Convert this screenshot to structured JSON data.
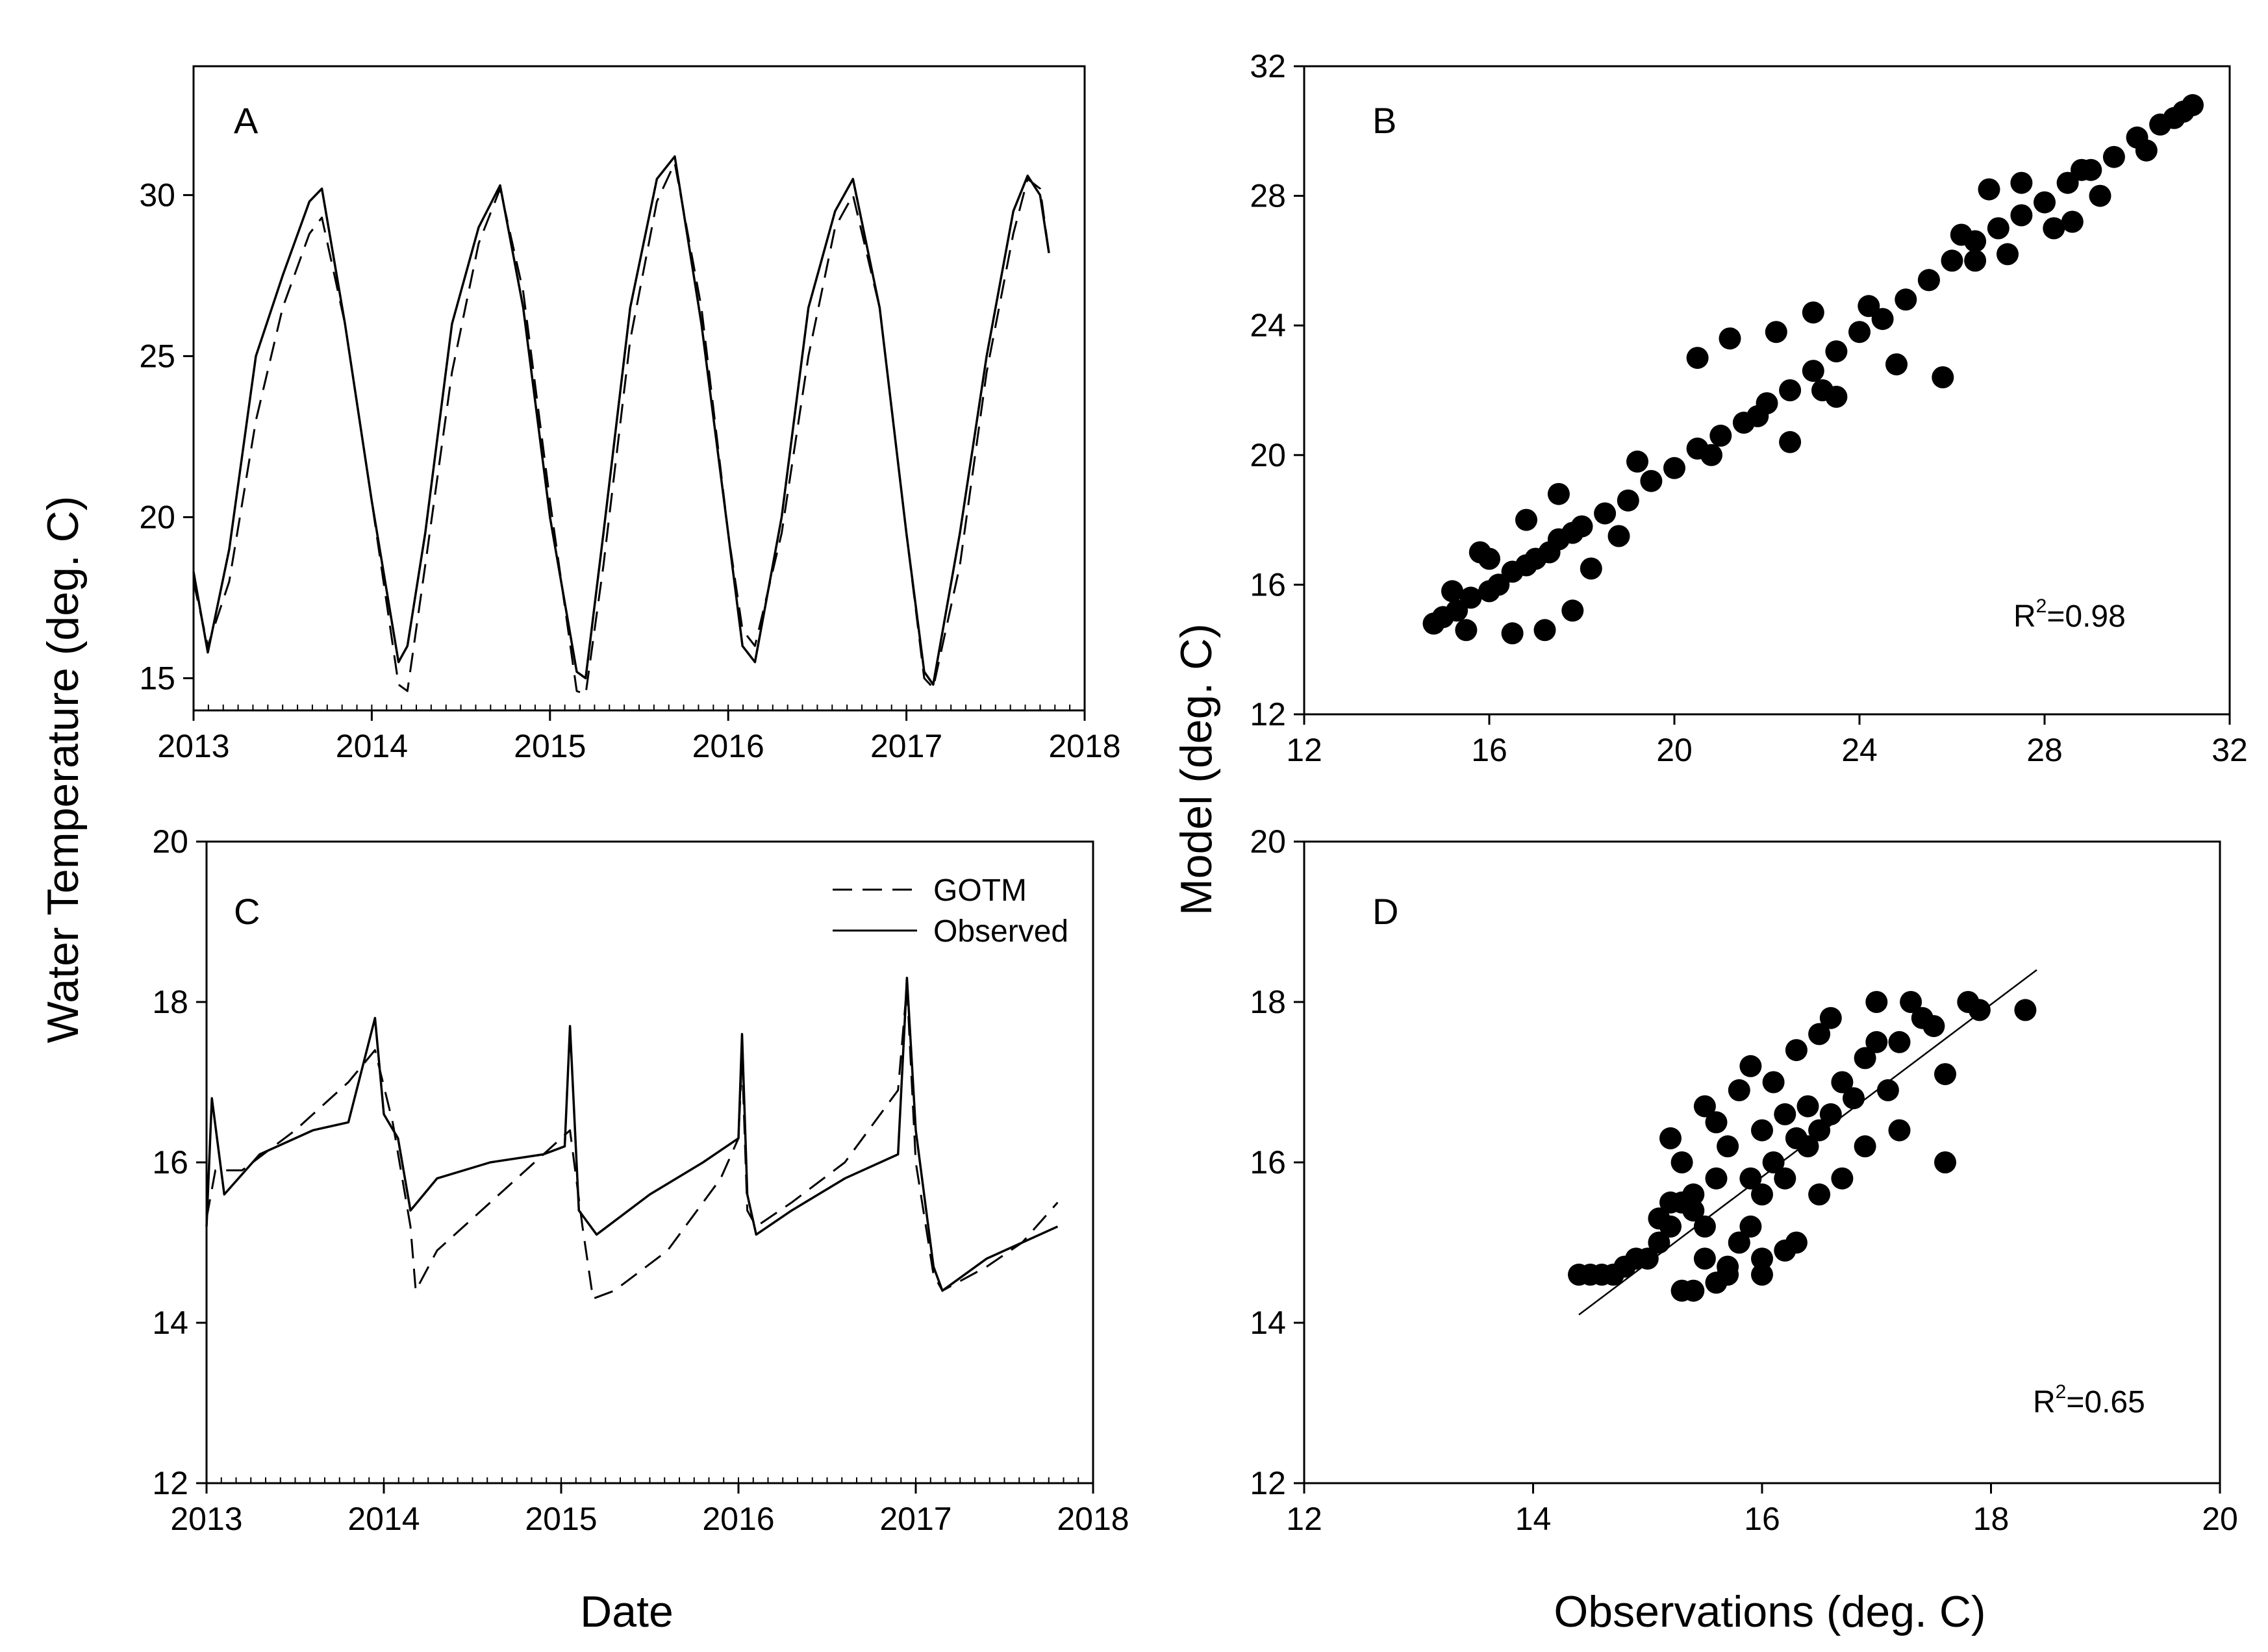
{
  "figure": {
    "shared_ylabel_left": "Water Temperature (deg. C)",
    "shared_xlabel_left": "Date",
    "shared_ylabel_right": "Model (deg. C)",
    "shared_xlabel_right": "Observations (deg. C)"
  },
  "chart_data": [
    {
      "id": "A",
      "panel_label": "A",
      "type": "line",
      "xlabel": "Date",
      "ylabel": "Water Temperature (deg. C)",
      "xlim": [
        2013,
        2018
      ],
      "ylim": [
        14,
        34
      ],
      "xticks": [
        2013,
        2014,
        2015,
        2016,
        2017,
        2018
      ],
      "yticks": [
        15,
        20,
        25,
        30
      ],
      "series": [
        {
          "name": "GOTM",
          "style": "dashed",
          "x": [
            2013.0,
            2013.08,
            2013.2,
            2013.35,
            2013.5,
            2013.65,
            2013.72,
            2013.85,
            2014.0,
            2014.15,
            2014.2,
            2014.3,
            2014.45,
            2014.6,
            2014.72,
            2014.85,
            2015.0,
            2015.15,
            2015.2,
            2015.3,
            2015.45,
            2015.6,
            2015.7,
            2015.85,
            2016.0,
            2016.08,
            2016.15,
            2016.3,
            2016.45,
            2016.6,
            2016.7,
            2016.85,
            2017.0,
            2017.1,
            2017.15,
            2017.3,
            2017.45,
            2017.6,
            2017.68,
            2017.75,
            2017.8
          ],
          "values": [
            18.0,
            16.0,
            18.0,
            23.0,
            26.5,
            28.8,
            29.3,
            26.0,
            20.5,
            14.8,
            14.6,
            18.5,
            24.5,
            28.5,
            30.2,
            27.0,
            20.5,
            14.6,
            14.5,
            18.5,
            25.5,
            29.8,
            31.0,
            26.5,
            19.5,
            16.5,
            16.0,
            19.5,
            25.0,
            29.0,
            30.0,
            26.5,
            19.5,
            15.0,
            14.7,
            18.5,
            24.5,
            28.8,
            30.5,
            30.2,
            28.2
          ]
        },
        {
          "name": "Observed",
          "style": "solid",
          "x": [
            2013.0,
            2013.08,
            2013.2,
            2013.35,
            2013.5,
            2013.65,
            2013.72,
            2013.85,
            2014.0,
            2014.15,
            2014.2,
            2014.3,
            2014.45,
            2014.6,
            2014.72,
            2014.85,
            2015.0,
            2015.15,
            2015.2,
            2015.3,
            2015.45,
            2015.6,
            2015.7,
            2015.85,
            2016.0,
            2016.08,
            2016.15,
            2016.3,
            2016.45,
            2016.6,
            2016.7,
            2016.85,
            2017.0,
            2017.1,
            2017.15,
            2017.3,
            2017.45,
            2017.6,
            2017.68,
            2017.75,
            2017.8
          ],
          "values": [
            18.3,
            15.8,
            19.0,
            25.0,
            27.5,
            29.8,
            30.2,
            26.0,
            20.5,
            15.5,
            16.0,
            19.5,
            26.0,
            29.0,
            30.3,
            26.5,
            20.0,
            15.2,
            15.0,
            19.5,
            26.5,
            30.5,
            31.2,
            26.0,
            19.5,
            16.0,
            15.5,
            20.0,
            26.5,
            29.5,
            30.5,
            26.5,
            19.5,
            15.2,
            14.8,
            19.5,
            25.0,
            29.5,
            30.6,
            30.0,
            28.2
          ]
        }
      ]
    },
    {
      "id": "B",
      "panel_label": "B",
      "type": "scatter",
      "xlabel": "Observations (deg. C)",
      "ylabel": "Model (deg. C)",
      "xlim": [
        12,
        32
      ],
      "ylim": [
        12,
        32
      ],
      "xticks": [
        12,
        16,
        20,
        24,
        28,
        32
      ],
      "yticks": [
        12,
        16,
        20,
        24,
        28,
        32
      ],
      "annotation": "0.98",
      "x": [
        14.8,
        15.0,
        15.3,
        15.6,
        16.0,
        16.2,
        16.5,
        16.8,
        17.0,
        17.3,
        17.5,
        17.8,
        18.0,
        18.5,
        19.0,
        19.5,
        20.0,
        20.5,
        21.0,
        21.5,
        22.0,
        22.5,
        23.0,
        23.5,
        24.0,
        24.5,
        25.0,
        25.5,
        26.0,
        26.5,
        27.0,
        27.5,
        28.0,
        28.5,
        29.0,
        29.5,
        30.0,
        30.5,
        31.0,
        31.2,
        15.5,
        16.5,
        17.2,
        17.8,
        18.2,
        18.8,
        20.5,
        21.2,
        22.2,
        23.0,
        24.2,
        25.5,
        26.2,
        26.8,
        27.5,
        28.8,
        15.2,
        16.0,
        17.5,
        21.8,
        22.5,
        23.5,
        24.8,
        25.8,
        27.2,
        28.2,
        29.2,
        30.2,
        15.8,
        16.8,
        19.2,
        20.8,
        23.2,
        26.5,
        28.6,
        30.8
      ],
      "values": [
        14.8,
        15.0,
        15.2,
        15.6,
        15.8,
        16.0,
        16.4,
        16.6,
        16.8,
        17.0,
        17.4,
        17.6,
        17.8,
        18.2,
        18.6,
        19.2,
        19.6,
        20.2,
        20.6,
        21.0,
        21.6,
        22.0,
        22.6,
        23.2,
        23.8,
        24.2,
        24.8,
        25.4,
        26.0,
        26.6,
        27.0,
        27.4,
        27.8,
        28.4,
        28.8,
        29.2,
        29.8,
        30.2,
        30.6,
        30.8,
        14.6,
        14.5,
        14.6,
        15.2,
        16.5,
        17.5,
        23.0,
        23.6,
        23.8,
        24.4,
        24.6,
        25.4,
        26.8,
        28.2,
        28.4,
        28.8,
        15.8,
        16.8,
        18.8,
        21.2,
        20.4,
        21.8,
        22.8,
        22.4,
        26.2,
        27.0,
        28.0,
        29.4,
        17.0,
        18.0,
        19.8,
        20.0,
        22.0,
        26.0,
        27.2,
        30.4
      ]
    },
    {
      "id": "C",
      "panel_label": "C",
      "type": "line",
      "xlabel": "Date",
      "ylabel": "Water Temperature (deg. C)",
      "xlim": [
        2013,
        2018
      ],
      "ylim": [
        12,
        20
      ],
      "xticks": [
        2013,
        2014,
        2015,
        2016,
        2017,
        2018
      ],
      "yticks": [
        12,
        14,
        16,
        18,
        20
      ],
      "legend": {
        "location": "top-right",
        "entries": [
          "GOTM",
          "Observed"
        ]
      },
      "series": [
        {
          "name": "GOTM",
          "style": "dashed",
          "x": [
            2013.0,
            2013.05,
            2013.2,
            2013.5,
            2013.8,
            2013.95,
            2014.05,
            2014.15,
            2014.18,
            2014.3,
            2014.6,
            2014.9,
            2015.05,
            2015.12,
            2015.18,
            2015.3,
            2015.6,
            2015.9,
            2016.0,
            2016.02,
            2016.05,
            2016.1,
            2016.3,
            2016.6,
            2016.9,
            2016.95,
            2017.0,
            2017.1,
            2017.15,
            2017.4,
            2017.6,
            2017.8
          ],
          "values": [
            15.3,
            15.9,
            15.9,
            16.4,
            17.0,
            17.4,
            16.5,
            15.2,
            14.4,
            14.9,
            15.5,
            16.1,
            16.4,
            15.2,
            14.3,
            14.4,
            14.9,
            15.8,
            16.3,
            17.3,
            15.4,
            15.2,
            15.5,
            16.0,
            16.9,
            18.2,
            16.0,
            14.6,
            14.4,
            14.7,
            15.0,
            15.5
          ]
        },
        {
          "name": "Observed",
          "style": "solid",
          "x": [
            2013.0,
            2013.03,
            2013.1,
            2013.3,
            2013.6,
            2013.8,
            2013.95,
            2014.0,
            2014.08,
            2014.15,
            2014.3,
            2014.6,
            2014.9,
            2015.02,
            2015.05,
            2015.1,
            2015.2,
            2015.5,
            2015.8,
            2016.0,
            2016.02,
            2016.05,
            2016.1,
            2016.3,
            2016.6,
            2016.9,
            2016.95,
            2017.0,
            2017.1,
            2017.15,
            2017.4,
            2017.6,
            2017.8
          ],
          "values": [
            15.2,
            16.8,
            15.6,
            16.1,
            16.4,
            16.5,
            17.8,
            16.6,
            16.3,
            15.4,
            15.8,
            16.0,
            16.1,
            16.2,
            17.7,
            15.4,
            15.1,
            15.6,
            16.0,
            16.3,
            17.6,
            15.6,
            15.1,
            15.4,
            15.8,
            16.1,
            18.3,
            16.4,
            14.7,
            14.4,
            14.8,
            15.0,
            15.2
          ]
        }
      ]
    },
    {
      "id": "D",
      "panel_label": "D",
      "type": "scatter",
      "xlabel": "Observations (deg. C)",
      "ylabel": "Model (deg. C)",
      "xlim": [
        12,
        20
      ],
      "ylim": [
        12,
        20
      ],
      "xticks": [
        12,
        14,
        16,
        18,
        20
      ],
      "yticks": [
        12,
        14,
        16,
        18,
        20
      ],
      "annotation": "0.65",
      "fit_line": {
        "x": [
          14.4,
          18.4
        ],
        "values": [
          14.1,
          18.4
        ]
      },
      "x": [
        14.4,
        14.5,
        14.6,
        14.7,
        14.8,
        14.9,
        15.0,
        15.1,
        15.2,
        15.2,
        15.3,
        15.3,
        15.4,
        15.4,
        15.5,
        15.5,
        15.6,
        15.6,
        15.7,
        15.7,
        15.8,
        15.8,
        15.9,
        15.9,
        16.0,
        16.0,
        16.1,
        16.1,
        16.2,
        16.2,
        16.3,
        16.3,
        16.4,
        16.4,
        16.5,
        16.5,
        16.6,
        16.6,
        16.7,
        16.8,
        16.9,
        17.0,
        17.0,
        17.1,
        17.2,
        17.3,
        17.4,
        17.5,
        17.6,
        17.8,
        18.3,
        15.1,
        15.4,
        15.6,
        15.8,
        16.0,
        16.3,
        16.5,
        16.9,
        17.2,
        17.6,
        17.9,
        15.3,
        15.5,
        15.7,
        16.0,
        16.2,
        16.7,
        15.2,
        15.9
      ],
      "values": [
        14.6,
        14.6,
        14.6,
        14.6,
        14.7,
        14.8,
        14.8,
        15.0,
        15.2,
        16.3,
        15.5,
        16.0,
        14.4,
        15.6,
        16.7,
        15.2,
        14.5,
        16.5,
        14.6,
        16.2,
        15.0,
        16.9,
        15.2,
        15.8,
        15.6,
        16.4,
        16.0,
        17.0,
        15.8,
        16.6,
        16.3,
        17.4,
        16.2,
        16.7,
        16.4,
        17.6,
        16.6,
        17.8,
        17.0,
        16.8,
        17.3,
        17.5,
        18.0,
        16.9,
        17.5,
        18.0,
        17.8,
        17.7,
        17.1,
        18.0,
        17.9,
        15.3,
        15.4,
        15.8,
        15.0,
        14.8,
        15.0,
        15.6,
        16.2,
        16.4,
        16.0,
        17.9,
        14.4,
        14.8,
        14.7,
        14.6,
        14.9,
        15.8,
        15.5,
        17.2
      ]
    }
  ]
}
